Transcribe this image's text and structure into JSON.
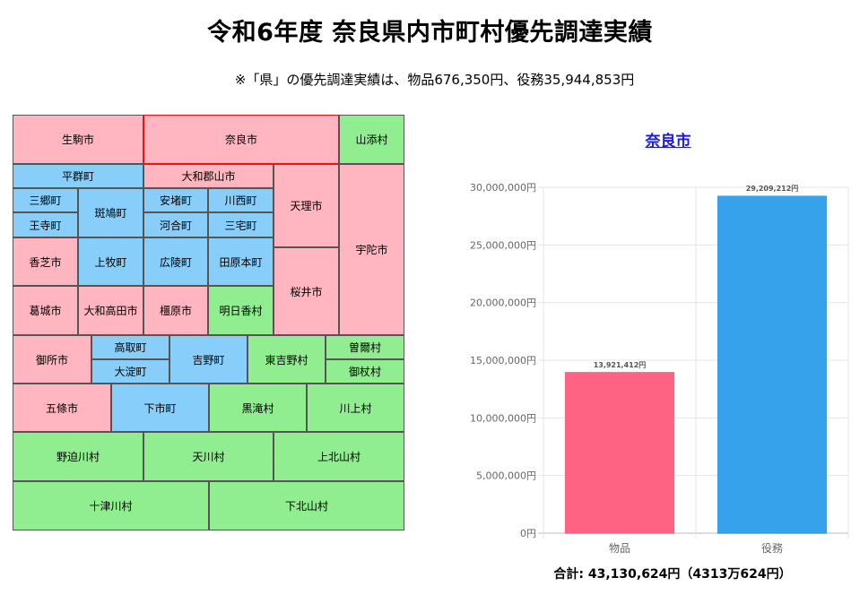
{
  "title": "令和6年度 奈良県内市町村優先調達実績",
  "subtitle": "※「県」の優先調達実績は、物品676,350円、役務35,944,853円",
  "colors": {
    "pink": "#ffb6c1",
    "blue": "#87cefa",
    "green": "#90ee90",
    "selected_border": "#ee1111"
  },
  "treemap": [
    {
      "name": "生駒市",
      "color": "pink"
    },
    {
      "name": "奈良市",
      "color": "pink",
      "selected": true
    },
    {
      "name": "山添村",
      "color": "green"
    },
    {
      "name": "平群町",
      "color": "blue"
    },
    {
      "name": "大和郡山市",
      "color": "pink"
    },
    {
      "name": "天理市",
      "color": "pink"
    },
    {
      "name": "宇陀市",
      "color": "pink"
    },
    {
      "name": "三郷町",
      "color": "blue"
    },
    {
      "name": "斑鳩町",
      "color": "blue"
    },
    {
      "name": "安堵町",
      "color": "blue"
    },
    {
      "name": "川西町",
      "color": "blue"
    },
    {
      "name": "王寺町",
      "color": "blue"
    },
    {
      "name": "河合町",
      "color": "blue"
    },
    {
      "name": "三宅町",
      "color": "blue"
    },
    {
      "name": "香芝市",
      "color": "pink"
    },
    {
      "name": "上牧町",
      "color": "blue"
    },
    {
      "name": "広陵町",
      "color": "blue"
    },
    {
      "name": "田原本町",
      "color": "blue"
    },
    {
      "name": "桜井市",
      "color": "pink"
    },
    {
      "name": "葛城市",
      "color": "pink"
    },
    {
      "name": "大和高田市",
      "color": "pink"
    },
    {
      "name": "橿原市",
      "color": "pink"
    },
    {
      "name": "明日香村",
      "color": "green"
    },
    {
      "name": "御所市",
      "color": "pink"
    },
    {
      "name": "高取町",
      "color": "blue"
    },
    {
      "name": "吉野町",
      "color": "blue"
    },
    {
      "name": "東吉野村",
      "color": "green"
    },
    {
      "name": "曽爾村",
      "color": "green"
    },
    {
      "name": "大淀町",
      "color": "blue"
    },
    {
      "name": "御杖村",
      "color": "green"
    },
    {
      "name": "五條市",
      "color": "pink"
    },
    {
      "name": "下市町",
      "color": "blue"
    },
    {
      "name": "黒滝村",
      "color": "green"
    },
    {
      "name": "川上村",
      "color": "green"
    },
    {
      "name": "野迫川村",
      "color": "green"
    },
    {
      "name": "天川村",
      "color": "green"
    },
    {
      "name": "上北山村",
      "color": "green"
    },
    {
      "name": "十津川村",
      "color": "green"
    },
    {
      "name": "下北山村",
      "color": "green"
    }
  ],
  "selected_city": "奈良市",
  "chart_data": {
    "type": "bar",
    "title": "奈良市",
    "categories": [
      "物品",
      "役務"
    ],
    "values": [
      13921412,
      29209212
    ],
    "value_labels": [
      "13,921,412円",
      "29,209,212円"
    ],
    "colors": [
      "#ff6384",
      "#36a2eb"
    ],
    "border_colors": [
      "#ff6384",
      "#36a2eb"
    ],
    "ylim": [
      0,
      30000000
    ],
    "yticks": [
      0,
      5000000,
      10000000,
      15000000,
      20000000,
      25000000,
      30000000
    ],
    "ytick_labels": [
      "0円",
      "5,000,000円",
      "10,000,000円",
      "15,000,000円",
      "20,000,000円",
      "25,000,000円",
      "30,000,000円"
    ],
    "grid": true
  },
  "total_text": "合計: 43,130,624円（4313万624円）"
}
